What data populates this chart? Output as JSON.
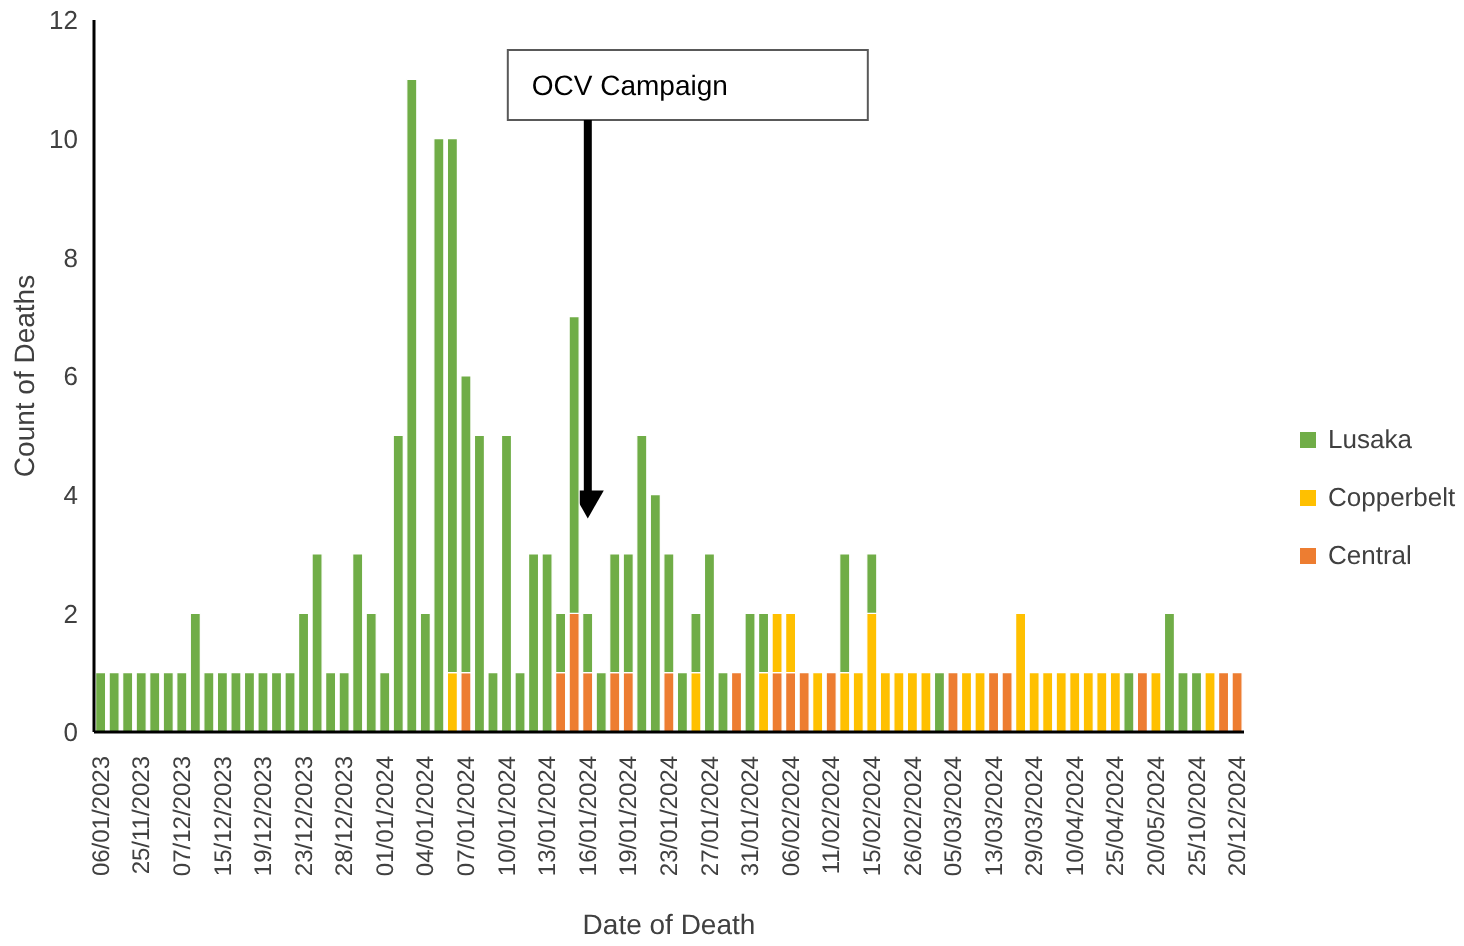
{
  "chart_data": {
    "type": "bar",
    "stacked": true,
    "xlabel": "Date of Death",
    "ylabel": "Count of Deaths",
    "categories": [
      "06/01/2023",
      null,
      null,
      "25/11/2023",
      null,
      null,
      "07/12/2023",
      null,
      null,
      "15/12/2023",
      null,
      null,
      "19/12/2023",
      null,
      null,
      "23/12/2023",
      null,
      null,
      "28/12/2023",
      null,
      null,
      "01/01/2024",
      null,
      null,
      "04/01/2024",
      null,
      null,
      "07/01/2024",
      null,
      null,
      "10/01/2024",
      null,
      null,
      "13/01/2024",
      null,
      null,
      "16/01/2024",
      null,
      null,
      "19/01/2024",
      null,
      null,
      "23/01/2024",
      null,
      null,
      "27/01/2024",
      null,
      null,
      "31/01/2024",
      null,
      null,
      "06/02/2024",
      null,
      null,
      "11/02/2024",
      null,
      null,
      "15/02/2024",
      null,
      null,
      "26/02/2024",
      null,
      null,
      "05/03/2024",
      null,
      null,
      "13/03/2024",
      null,
      null,
      "29/03/2024",
      null,
      null,
      "10/04/2024",
      null,
      null,
      "25/04/2024",
      null,
      null,
      "20/05/2024",
      null,
      null,
      "25/10/2024",
      null,
      null,
      "20/12/2024"
    ],
    "series": [
      {
        "name": "Central",
        "color": "#ed7d31",
        "values": [
          0,
          0,
          0,
          0,
          0,
          0,
          0,
          0,
          0,
          0,
          0,
          0,
          0,
          0,
          0,
          0,
          0,
          0,
          0,
          0,
          0,
          0,
          0,
          0,
          0,
          0,
          0,
          1,
          0,
          0,
          0,
          0,
          0,
          0,
          1,
          2,
          1,
          0,
          1,
          1,
          0,
          0,
          1,
          0,
          0,
          0,
          0,
          1,
          0,
          0,
          1,
          1,
          1,
          0,
          1,
          0,
          0,
          0,
          0,
          0,
          0,
          0,
          0,
          1,
          0,
          0,
          1,
          1,
          0,
          0,
          0,
          0,
          0,
          0,
          0,
          0,
          0,
          1,
          0,
          0,
          0,
          0,
          0,
          1,
          1
        ]
      },
      {
        "name": "Copperbelt",
        "color": "#ffc000",
        "values": [
          0,
          0,
          0,
          0,
          0,
          0,
          0,
          0,
          0,
          0,
          0,
          0,
          0,
          0,
          0,
          0,
          0,
          0,
          0,
          0,
          0,
          0,
          0,
          0,
          0,
          0,
          1,
          0,
          0,
          0,
          0,
          0,
          0,
          0,
          0,
          0,
          0,
          0,
          0,
          0,
          0,
          0,
          0,
          0,
          1,
          0,
          0,
          0,
          0,
          1,
          1,
          1,
          0,
          1,
          0,
          1,
          1,
          2,
          1,
          1,
          1,
          1,
          0,
          0,
          1,
          1,
          0,
          0,
          2,
          1,
          1,
          1,
          1,
          1,
          1,
          1,
          0,
          0,
          1,
          0,
          0,
          0,
          1,
          0,
          0
        ]
      },
      {
        "name": "Lusaka",
        "color": "#70ad47",
        "values": [
          1,
          1,
          1,
          1,
          1,
          1,
          1,
          2,
          1,
          1,
          1,
          1,
          1,
          1,
          1,
          2,
          3,
          1,
          1,
          3,
          2,
          1,
          5,
          11,
          2,
          10,
          9,
          5,
          5,
          1,
          5,
          1,
          3,
          3,
          1,
          5,
          1,
          1,
          2,
          2,
          5,
          4,
          2,
          1,
          1,
          3,
          1,
          0,
          2,
          1,
          0,
          0,
          0,
          0,
          0,
          2,
          0,
          1,
          0,
          0,
          0,
          0,
          1,
          0,
          0,
          0,
          0,
          0,
          0,
          0,
          0,
          0,
          0,
          0,
          0,
          0,
          1,
          0,
          0,
          2,
          1,
          1,
          0,
          0,
          0
        ]
      }
    ],
    "ylim": [
      0,
      12
    ],
    "yticks": [
      0,
      2,
      4,
      6,
      8,
      10,
      12
    ],
    "legend": "right",
    "annotations": [
      "OCV Campaign"
    ]
  }
}
